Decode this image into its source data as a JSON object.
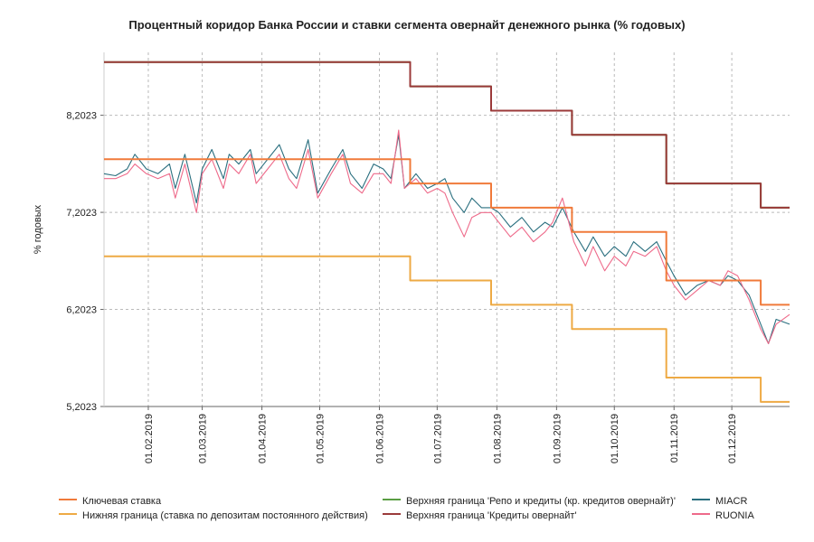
{
  "chart_data": {
    "type": "line",
    "title": "Процентный коридор Банка России и ставки сегмента овернайт денежного рынка (% годовых)",
    "ylabel": "% годовых",
    "xlabel": "",
    "ylim": [
      5.2023,
      8.85
    ],
    "y_ticks": [
      "5,2023",
      "6,2023",
      "7,2023",
      "8,2023"
    ],
    "y_tick_values": [
      5.2023,
      6.2023,
      7.2023,
      8.2023
    ],
    "x_ticks": [
      "01.02.2019",
      "01.03.2019",
      "01.04.2019",
      "01.05.2019",
      "01.06.2019",
      "01.07.2019",
      "01.08.2019",
      "01.09.2019",
      "01.10.2019",
      "01.11.2019",
      "01.12.2019"
    ],
    "x_range": [
      "2019-01-09",
      "2019-12-31"
    ],
    "grid": true,
    "legend_position": "bottom",
    "series": [
      {
        "name": "Ключевая ставка",
        "color": "#f07a3a",
        "step": true,
        "x": [
          "2019-01-09",
          "2019-06-17",
          "2019-07-29",
          "2019-09-09",
          "2019-10-28",
          "2019-12-16",
          "2019-12-31"
        ],
        "y": [
          7.75,
          7.5,
          7.25,
          7.0,
          6.5,
          6.25,
          6.25
        ]
      },
      {
        "name": "Нижняя граница (ставка по депозитам постоянного действия)",
        "color": "#eeaa44",
        "step": true,
        "x": [
          "2019-01-09",
          "2019-06-17",
          "2019-07-29",
          "2019-09-09",
          "2019-10-28",
          "2019-12-16",
          "2019-12-31"
        ],
        "y": [
          6.75,
          6.5,
          6.25,
          6.0,
          5.5,
          5.25,
          5.25
        ]
      },
      {
        "name": "Верхняя граница  'Репо и кредиты (кр. кредитов овернайт)'",
        "color": "#5a9e44",
        "step": true,
        "x": [
          "2019-01-09",
          "2019-06-17",
          "2019-07-29",
          "2019-09-09",
          "2019-10-28",
          "2019-12-16",
          "2019-12-31"
        ],
        "y": [
          8.75,
          8.5,
          8.25,
          8.0,
          7.5,
          7.25,
          7.25
        ]
      },
      {
        "name": "Верхняя граница 'Кредиты овернайт'",
        "color": "#9b3a3a",
        "step": true,
        "x": [
          "2019-01-09",
          "2019-06-17",
          "2019-07-29",
          "2019-09-09",
          "2019-10-28",
          "2019-12-16",
          "2019-12-31"
        ],
        "y": [
          8.75,
          8.5,
          8.25,
          8.0,
          7.5,
          7.25,
          7.25
        ]
      },
      {
        "name": "MIACR",
        "color": "#2a6f7f",
        "step": false,
        "x": [
          "2019-01-09",
          "2019-01-15",
          "2019-01-21",
          "2019-01-25",
          "2019-01-31",
          "2019-02-06",
          "2019-02-12",
          "2019-02-15",
          "2019-02-20",
          "2019-02-26",
          "2019-03-01",
          "2019-03-06",
          "2019-03-12",
          "2019-03-15",
          "2019-03-20",
          "2019-03-26",
          "2019-03-29",
          "2019-04-04",
          "2019-04-10",
          "2019-04-15",
          "2019-04-19",
          "2019-04-25",
          "2019-04-30",
          "2019-05-07",
          "2019-05-13",
          "2019-05-17",
          "2019-05-23",
          "2019-05-29",
          "2019-06-03",
          "2019-06-07",
          "2019-06-11",
          "2019-06-14",
          "2019-06-20",
          "2019-06-26",
          "2019-07-01",
          "2019-07-05",
          "2019-07-09",
          "2019-07-15",
          "2019-07-19",
          "2019-07-24",
          "2019-07-29",
          "2019-08-02",
          "2019-08-08",
          "2019-08-14",
          "2019-08-20",
          "2019-08-26",
          "2019-08-30",
          "2019-09-04",
          "2019-09-10",
          "2019-09-16",
          "2019-09-20",
          "2019-09-26",
          "2019-10-01",
          "2019-10-07",
          "2019-10-11",
          "2019-10-17",
          "2019-10-23",
          "2019-10-28",
          "2019-11-01",
          "2019-11-07",
          "2019-11-13",
          "2019-11-19",
          "2019-11-25",
          "2019-11-29",
          "2019-12-04",
          "2019-12-10",
          "2019-12-16",
          "2019-12-20",
          "2019-12-24",
          "2019-12-31"
        ],
        "y": [
          7.6,
          7.58,
          7.65,
          7.8,
          7.65,
          7.6,
          7.7,
          7.45,
          7.8,
          7.3,
          7.65,
          7.85,
          7.55,
          7.8,
          7.7,
          7.85,
          7.6,
          7.75,
          7.9,
          7.65,
          7.55,
          7.95,
          7.4,
          7.65,
          7.85,
          7.6,
          7.45,
          7.7,
          7.65,
          7.55,
          8.0,
          7.45,
          7.6,
          7.45,
          7.5,
          7.55,
          7.35,
          7.2,
          7.35,
          7.25,
          7.25,
          7.2,
          7.05,
          7.15,
          7.0,
          7.1,
          7.05,
          7.25,
          7.0,
          6.8,
          6.95,
          6.75,
          6.85,
          6.75,
          6.9,
          6.8,
          6.9,
          6.7,
          6.55,
          6.35,
          6.45,
          6.5,
          6.45,
          6.55,
          6.5,
          6.35,
          6.05,
          5.85,
          6.1,
          6.05
        ]
      },
      {
        "name": "RUONIA",
        "color": "#ee6a8a",
        "step": false,
        "x": [
          "2019-01-09",
          "2019-01-15",
          "2019-01-21",
          "2019-01-25",
          "2019-01-31",
          "2019-02-06",
          "2019-02-12",
          "2019-02-15",
          "2019-02-20",
          "2019-02-26",
          "2019-03-01",
          "2019-03-06",
          "2019-03-12",
          "2019-03-15",
          "2019-03-20",
          "2019-03-26",
          "2019-03-29",
          "2019-04-04",
          "2019-04-10",
          "2019-04-15",
          "2019-04-19",
          "2019-04-25",
          "2019-04-30",
          "2019-05-07",
          "2019-05-13",
          "2019-05-17",
          "2019-05-23",
          "2019-05-29",
          "2019-06-03",
          "2019-06-07",
          "2019-06-11",
          "2019-06-14",
          "2019-06-20",
          "2019-06-26",
          "2019-07-01",
          "2019-07-05",
          "2019-07-09",
          "2019-07-15",
          "2019-07-19",
          "2019-07-24",
          "2019-07-29",
          "2019-08-02",
          "2019-08-08",
          "2019-08-14",
          "2019-08-20",
          "2019-08-26",
          "2019-08-30",
          "2019-09-04",
          "2019-09-10",
          "2019-09-16",
          "2019-09-20",
          "2019-09-26",
          "2019-10-01",
          "2019-10-07",
          "2019-10-11",
          "2019-10-17",
          "2019-10-23",
          "2019-10-28",
          "2019-11-01",
          "2019-11-07",
          "2019-11-13",
          "2019-11-19",
          "2019-11-25",
          "2019-11-29",
          "2019-12-04",
          "2019-12-10",
          "2019-12-16",
          "2019-12-20",
          "2019-12-24",
          "2019-12-31"
        ],
        "y": [
          7.55,
          7.55,
          7.6,
          7.7,
          7.6,
          7.55,
          7.6,
          7.35,
          7.7,
          7.2,
          7.6,
          7.75,
          7.45,
          7.7,
          7.6,
          7.8,
          7.5,
          7.65,
          7.8,
          7.55,
          7.45,
          7.85,
          7.35,
          7.6,
          7.8,
          7.5,
          7.4,
          7.6,
          7.6,
          7.5,
          8.05,
          7.45,
          7.55,
          7.4,
          7.45,
          7.4,
          7.2,
          6.95,
          7.15,
          7.2,
          7.2,
          7.1,
          6.95,
          7.05,
          6.9,
          7.0,
          7.1,
          7.35,
          6.9,
          6.65,
          6.85,
          6.6,
          6.75,
          6.65,
          6.8,
          6.75,
          6.85,
          6.6,
          6.45,
          6.3,
          6.4,
          6.5,
          6.45,
          6.6,
          6.55,
          6.3,
          6.0,
          5.85,
          6.05,
          6.15
        ]
      }
    ]
  }
}
